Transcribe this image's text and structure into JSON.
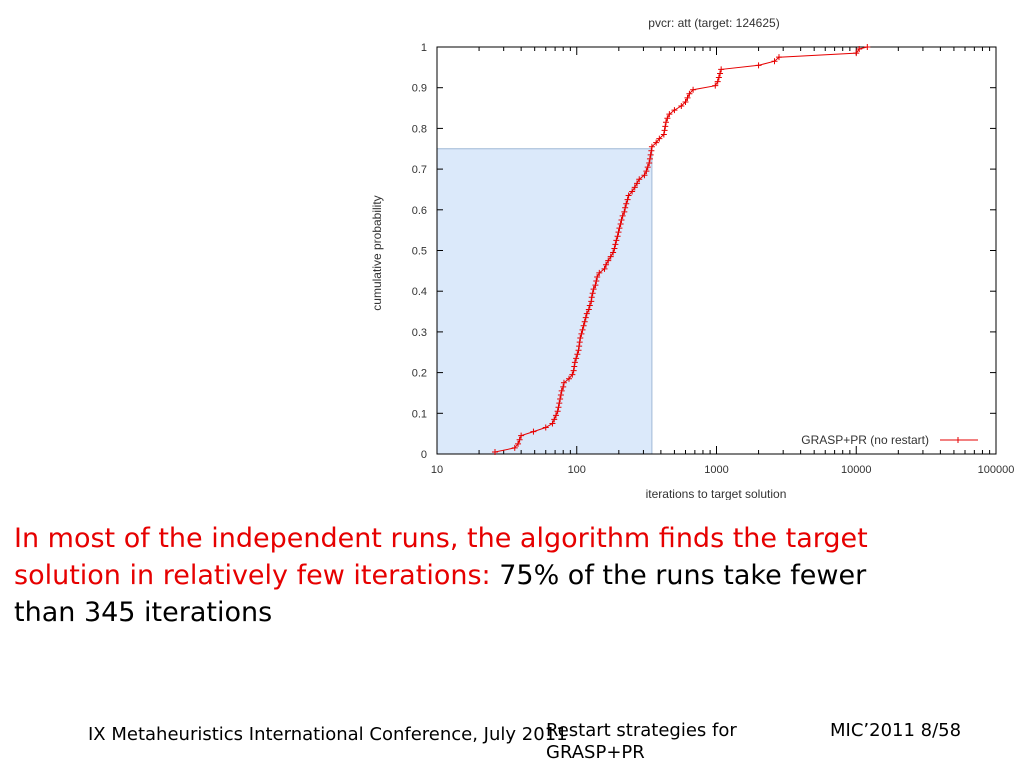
{
  "chart_data": {
    "type": "line",
    "title": "pvcr: att (target: 124625)",
    "xlabel": "iterations to target solution",
    "ylabel": "cumulative probability",
    "xscale": "log",
    "xlim": [
      10,
      100000
    ],
    "ylim": [
      0,
      1
    ],
    "x_ticks": [
      "10",
      "100",
      "1000",
      "10000",
      "100000"
    ],
    "y_ticks": [
      "0",
      "0.1",
      "0.2",
      "0.3",
      "0.4",
      "0.5",
      "0.6",
      "0.7",
      "0.8",
      "0.9",
      "1"
    ],
    "legend_position": "bottom-right",
    "highlight": {
      "x_max": 345,
      "y_max": 0.75,
      "color": "#dbe9fa"
    },
    "series": [
      {
        "name": "GRASP+PR (no restart)",
        "color": "#e60000",
        "points": [
          [
            26,
            0.005
          ],
          [
            36,
            0.015
          ],
          [
            38,
            0.025
          ],
          [
            39,
            0.035
          ],
          [
            40,
            0.045
          ],
          [
            49,
            0.055
          ],
          [
            60,
            0.065
          ],
          [
            67,
            0.075
          ],
          [
            69,
            0.085
          ],
          [
            71,
            0.095
          ],
          [
            73,
            0.105
          ],
          [
            74,
            0.115
          ],
          [
            75,
            0.125
          ],
          [
            76,
            0.135
          ],
          [
            77,
            0.145
          ],
          [
            78,
            0.155
          ],
          [
            80,
            0.165
          ],
          [
            81,
            0.175
          ],
          [
            88,
            0.185
          ],
          [
            93,
            0.195
          ],
          [
            95,
            0.205
          ],
          [
            96,
            0.215
          ],
          [
            97,
            0.225
          ],
          [
            99,
            0.235
          ],
          [
            101,
            0.245
          ],
          [
            103,
            0.255
          ],
          [
            104,
            0.265
          ],
          [
            105,
            0.275
          ],
          [
            106,
            0.285
          ],
          [
            108,
            0.295
          ],
          [
            110,
            0.305
          ],
          [
            112,
            0.315
          ],
          [
            114,
            0.325
          ],
          [
            116,
            0.335
          ],
          [
            118,
            0.345
          ],
          [
            122,
            0.355
          ],
          [
            124,
            0.365
          ],
          [
            127,
            0.375
          ],
          [
            128,
            0.385
          ],
          [
            130,
            0.395
          ],
          [
            132,
            0.405
          ],
          [
            136,
            0.415
          ],
          [
            138,
            0.425
          ],
          [
            140,
            0.435
          ],
          [
            145,
            0.445
          ],
          [
            158,
            0.455
          ],
          [
            162,
            0.465
          ],
          [
            168,
            0.475
          ],
          [
            175,
            0.485
          ],
          [
            182,
            0.495
          ],
          [
            186,
            0.505
          ],
          [
            189,
            0.515
          ],
          [
            192,
            0.525
          ],
          [
            196,
            0.535
          ],
          [
            199,
            0.545
          ],
          [
            202,
            0.555
          ],
          [
            206,
            0.565
          ],
          [
            209,
            0.575
          ],
          [
            213,
            0.585
          ],
          [
            219,
            0.595
          ],
          [
            222,
            0.605
          ],
          [
            226,
            0.615
          ],
          [
            231,
            0.625
          ],
          [
            235,
            0.635
          ],
          [
            249,
            0.645
          ],
          [
            260,
            0.655
          ],
          [
            270,
            0.665
          ],
          [
            280,
            0.675
          ],
          [
            305,
            0.685
          ],
          [
            315,
            0.695
          ],
          [
            322,
            0.705
          ],
          [
            330,
            0.715
          ],
          [
            334,
            0.725
          ],
          [
            338,
            0.735
          ],
          [
            342,
            0.745
          ],
          [
            345,
            0.755
          ],
          [
            370,
            0.765
          ],
          [
            390,
            0.775
          ],
          [
            420,
            0.785
          ],
          [
            425,
            0.795
          ],
          [
            430,
            0.805
          ],
          [
            435,
            0.815
          ],
          [
            445,
            0.825
          ],
          [
            460,
            0.835
          ],
          [
            500,
            0.845
          ],
          [
            560,
            0.855
          ],
          [
            600,
            0.865
          ],
          [
            620,
            0.875
          ],
          [
            640,
            0.885
          ],
          [
            680,
            0.895
          ],
          [
            980,
            0.905
          ],
          [
            1020,
            0.915
          ],
          [
            1040,
            0.925
          ],
          [
            1060,
            0.935
          ],
          [
            1080,
            0.945
          ],
          [
            2000,
            0.955
          ],
          [
            2600,
            0.965
          ],
          [
            2800,
            0.975
          ],
          [
            10000,
            0.985
          ],
          [
            10500,
            0.995
          ],
          [
            12000,
            1.0
          ]
        ]
      }
    ]
  },
  "caption": {
    "highlight_text": "In most of the independent runs, the algorithm finds the target solution in relatively few iterations:",
    "plain_text": " 75% of the runs take fewer than 345 iterations"
  },
  "footer": {
    "left": "IX Metaheuristics International Conference, July 2011",
    "center": "Restart strategies for GRASP+PR",
    "right": "MIC’2011 8/58"
  }
}
